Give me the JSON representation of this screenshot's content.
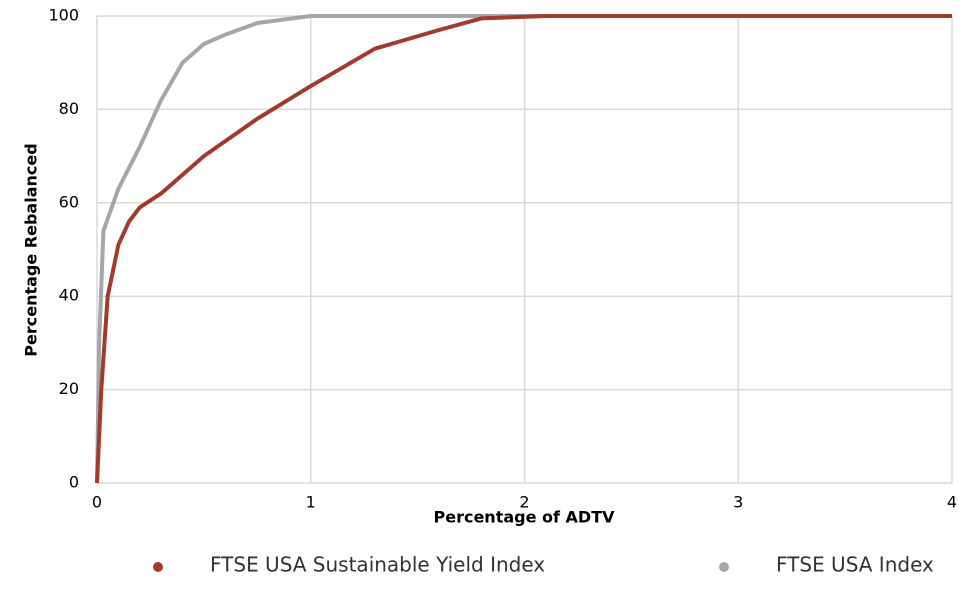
{
  "chart_data": {
    "type": "line",
    "xlabel": "Percentage of ADTV",
    "ylabel": "Percentage Rebalanced",
    "xlim": [
      0,
      4
    ],
    "xticks": [
      0,
      1,
      2,
      3,
      4
    ],
    "ylim": [
      0,
      100
    ],
    "yticks": [
      0,
      20,
      40,
      60,
      80,
      100
    ],
    "grid": true,
    "legend": "bottom",
    "series": [
      {
        "name": "FTSE USA Sustainable Yield Index",
        "color": "#a33a2b",
        "x": [
          0,
          0.02,
          0.05,
          0.1,
          0.15,
          0.2,
          0.3,
          0.5,
          0.75,
          1.0,
          1.3,
          1.6,
          1.8,
          2.1,
          4
        ],
        "values": [
          0,
          20,
          40,
          51,
          56,
          59,
          62,
          70,
          78,
          85,
          93,
          97,
          99.5,
          100,
          100
        ]
      },
      {
        "name": "FTSE USA Index",
        "color": "#a6a6a6",
        "x": [
          0,
          0.01,
          0.03,
          0.1,
          0.2,
          0.3,
          0.4,
          0.5,
          0.6,
          0.75,
          1.0,
          4
        ],
        "values": [
          0,
          30,
          54,
          63,
          72,
          82,
          90,
          94,
          96,
          98.5,
          100,
          100
        ]
      }
    ]
  }
}
